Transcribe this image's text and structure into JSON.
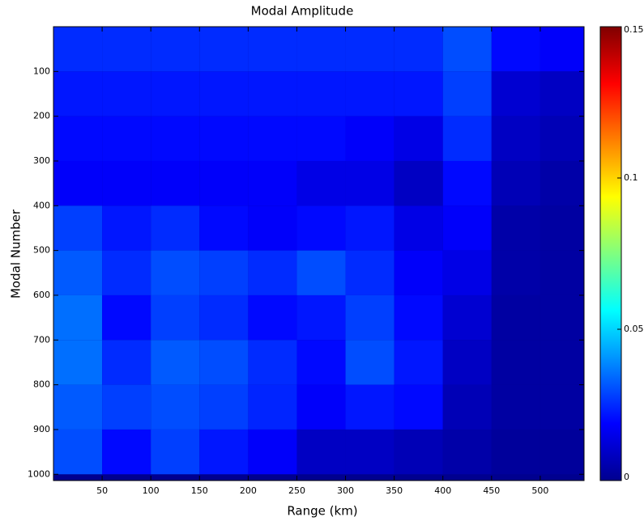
{
  "chart_data": {
    "type": "heatmap",
    "title": "Modal Amplitude",
    "x_label": "Range (km)",
    "y_label": "Modal Number",
    "x_edges": [
      0,
      50,
      100,
      150,
      200,
      250,
      300,
      350,
      400,
      450,
      500,
      545
    ],
    "y_edges": [
      0,
      100,
      200,
      300,
      400,
      500,
      600,
      700,
      800,
      900,
      1000
    ],
    "z": [
      [
        0.025,
        0.025,
        0.025,
        0.025,
        0.025,
        0.025,
        0.025,
        0.025,
        0.03,
        0.02,
        0.018
      ],
      [
        0.022,
        0.022,
        0.022,
        0.022,
        0.022,
        0.022,
        0.022,
        0.022,
        0.028,
        0.012,
        0.01
      ],
      [
        0.02,
        0.02,
        0.02,
        0.02,
        0.02,
        0.02,
        0.018,
        0.015,
        0.025,
        0.01,
        0.008
      ],
      [
        0.018,
        0.018,
        0.018,
        0.018,
        0.018,
        0.015,
        0.015,
        0.01,
        0.02,
        0.008,
        0.006
      ],
      [
        0.028,
        0.022,
        0.025,
        0.02,
        0.018,
        0.02,
        0.022,
        0.015,
        0.018,
        0.006,
        0.005
      ],
      [
        0.032,
        0.025,
        0.03,
        0.028,
        0.025,
        0.03,
        0.025,
        0.018,
        0.015,
        0.006,
        0.005
      ],
      [
        0.035,
        0.02,
        0.028,
        0.025,
        0.02,
        0.022,
        0.028,
        0.02,
        0.012,
        0.005,
        0.005
      ],
      [
        0.035,
        0.025,
        0.032,
        0.03,
        0.025,
        0.02,
        0.03,
        0.022,
        0.01,
        0.005,
        0.005
      ],
      [
        0.032,
        0.028,
        0.03,
        0.028,
        0.024,
        0.018,
        0.022,
        0.02,
        0.008,
        0.005,
        0.005
      ],
      [
        0.03,
        0.02,
        0.028,
        0.022,
        0.018,
        0.01,
        0.01,
        0.008,
        0.006,
        0.004,
        0.004
      ]
    ],
    "xlim": [
      0,
      545
    ],
    "xticks": [
      50,
      100,
      150,
      200,
      250,
      300,
      350,
      400,
      450,
      500
    ],
    "ylim": [
      0,
      1014
    ],
    "yticks": [
      100,
      200,
      300,
      400,
      500,
      600,
      700,
      800,
      900,
      1000
    ],
    "y_reversed": true,
    "colormap": "jet",
    "clim": [
      0,
      0.15
    ],
    "cticks": [
      0,
      0.05,
      0.1,
      0.15
    ]
  }
}
